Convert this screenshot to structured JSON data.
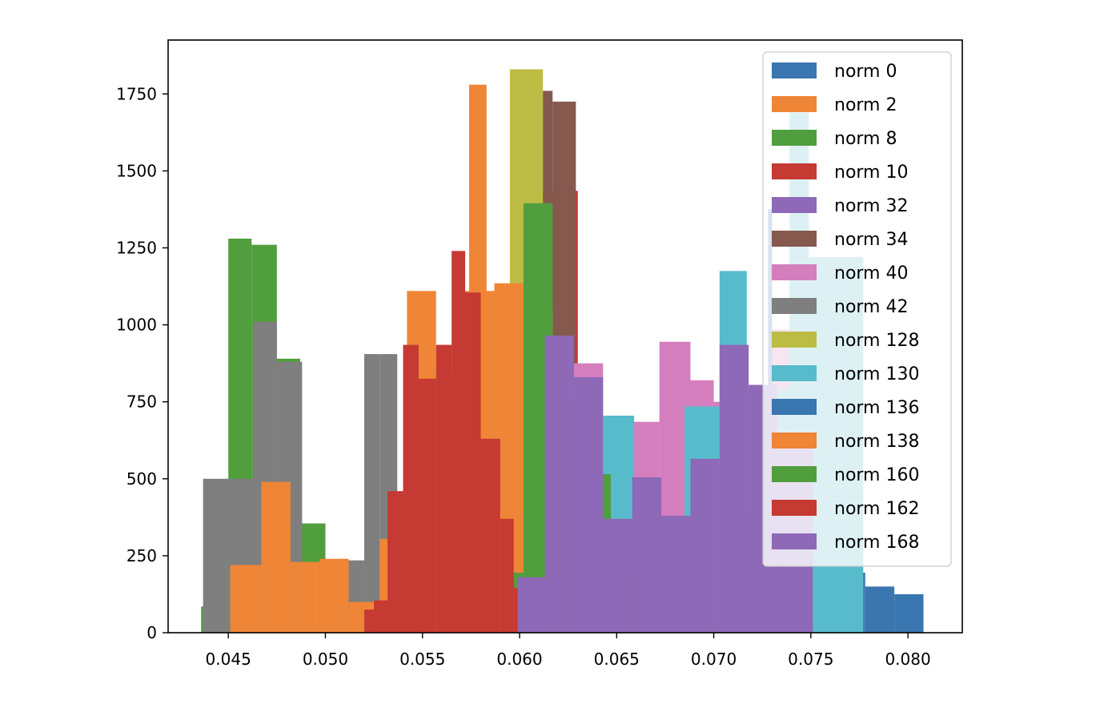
{
  "chart_data": {
    "type": "histogram",
    "title": "",
    "xlabel": "",
    "ylabel": "",
    "xlim": [
      0.0419,
      0.0828
    ],
    "ylim": [
      0,
      1925
    ],
    "xticks": [
      "0.045",
      "0.050",
      "0.055",
      "0.060",
      "0.065",
      "0.070",
      "0.075",
      "0.080"
    ],
    "yticks": [
      "0",
      "250",
      "500",
      "750",
      "1000",
      "1250",
      "1500",
      "1750"
    ],
    "grid": false,
    "legend_position": "top-right",
    "series": [
      {
        "name": "norm 0",
        "color": "#3a76af",
        "bins": [
          [
            0.075,
            0.0766,
            420
          ],
          [
            0.0766,
            0.077,
            300
          ],
          [
            0.077,
            0.0778,
            195
          ],
          [
            0.0778,
            0.0793,
            150
          ],
          [
            0.0793,
            0.0808,
            125
          ]
        ]
      },
      {
        "name": "norm 2",
        "color": "#ef8536",
        "bins": [
          [
            0.0574,
            0.0583,
            1780
          ]
        ]
      },
      {
        "name": "norm 8",
        "color": "#519e3e",
        "bins": [
          [
            0.0436,
            0.045,
            85
          ],
          [
            0.045,
            0.0462,
            1280
          ],
          [
            0.0462,
            0.0475,
            1260
          ],
          [
            0.0475,
            0.0487,
            890
          ],
          [
            0.0487,
            0.05,
            355
          ]
        ]
      },
      {
        "name": "norm 10",
        "color": "#c53a32",
        "bins": [
          [
            0.0612,
            0.063,
            1435
          ]
        ]
      },
      {
        "name": "norm 32",
        "color": "#8d69b8",
        "bins": []
      },
      {
        "name": "norm 34",
        "color": "#85594e",
        "bins": [
          [
            0.0612,
            0.0617,
            1760
          ],
          [
            0.0617,
            0.0629,
            1725
          ]
        ]
      },
      {
        "name": "norm 40",
        "color": "#d57ebe",
        "bins": [
          [
            0.0627,
            0.0643,
            875
          ],
          [
            0.0643,
            0.0658,
            705
          ],
          [
            0.0658,
            0.0672,
            685
          ],
          [
            0.0672,
            0.0688,
            945
          ],
          [
            0.0688,
            0.07,
            820
          ],
          [
            0.07,
            0.0714,
            750
          ],
          [
            0.0714,
            0.0729,
            635
          ],
          [
            0.0729,
            0.0744,
            985
          ],
          [
            0.0772,
            0.0774,
            190
          ]
        ]
      },
      {
        "name": "norm 42",
        "color": "#7f7f7f",
        "bins": [
          [
            0.0437,
            0.0463,
            500
          ],
          [
            0.0463,
            0.0475,
            1010
          ],
          [
            0.0475,
            0.0488,
            880
          ],
          [
            0.0488,
            0.0502,
            230
          ],
          [
            0.0502,
            0.052,
            235
          ],
          [
            0.052,
            0.0528,
            905
          ],
          [
            0.0528,
            0.0537,
            905
          ]
        ]
      },
      {
        "name": "norm 128",
        "color": "#bcbc45",
        "bins": [
          [
            0.0595,
            0.0612,
            1830
          ],
          [
            0.0612,
            0.0617,
            1050
          ]
        ]
      },
      {
        "name": "norm 130",
        "color": "#58bbcc",
        "bins": [
          [
            0.0583,
            0.0595,
            1100
          ],
          [
            0.0643,
            0.0659,
            705
          ],
          [
            0.0659,
            0.0685,
            370
          ],
          [
            0.0685,
            0.0703,
            735
          ],
          [
            0.0703,
            0.0717,
            1175
          ],
          [
            0.0717,
            0.0739,
            790
          ],
          [
            0.0739,
            0.0749,
            1690
          ],
          [
            0.0749,
            0.0777,
            1220
          ]
        ]
      },
      {
        "name": "norm 136",
        "color": "#3a76af",
        "bins": [
          [
            0.0715,
            0.072,
            375
          ],
          [
            0.072,
            0.0728,
            790
          ],
          [
            0.0728,
            0.073,
            1375
          ]
        ]
      },
      {
        "name": "norm 138",
        "color": "#ef8536",
        "bins": [
          [
            0.0451,
            0.0467,
            220
          ],
          [
            0.0467,
            0.0482,
            490
          ],
          [
            0.0482,
            0.0497,
            230
          ],
          [
            0.0497,
            0.0512,
            240
          ],
          [
            0.0512,
            0.0528,
            100
          ],
          [
            0.0528,
            0.0542,
            305
          ],
          [
            0.0542,
            0.0557,
            1110
          ],
          [
            0.0557,
            0.0572,
            845
          ],
          [
            0.0572,
            0.0587,
            1110
          ],
          [
            0.0587,
            0.0602,
            1135
          ]
        ]
      },
      {
        "name": "norm 160",
        "color": "#519e3e",
        "bins": [
          [
            0.0591,
            0.0602,
            195
          ],
          [
            0.0602,
            0.0617,
            1395
          ],
          [
            0.0617,
            0.0632,
            740
          ],
          [
            0.0632,
            0.0647,
            515
          ],
          [
            0.0647,
            0.0662,
            175
          ]
        ]
      },
      {
        "name": "norm 162",
        "color": "#c53a32",
        "bins": [
          [
            0.052,
            0.0525,
            75
          ],
          [
            0.0525,
            0.0532,
            105
          ],
          [
            0.0532,
            0.054,
            460
          ],
          [
            0.054,
            0.0548,
            935
          ],
          [
            0.0548,
            0.0557,
            825
          ],
          [
            0.0557,
            0.0565,
            935
          ],
          [
            0.0565,
            0.0572,
            1240
          ],
          [
            0.0572,
            0.058,
            1105
          ],
          [
            0.058,
            0.059,
            630
          ],
          [
            0.059,
            0.0597,
            370
          ],
          [
            0.0597,
            0.0602,
            145
          ]
        ]
      },
      {
        "name": "norm 168",
        "color": "#8d69b8",
        "bins": [
          [
            0.0599,
            0.0613,
            180
          ],
          [
            0.0613,
            0.0628,
            965
          ],
          [
            0.0628,
            0.0643,
            830
          ],
          [
            0.0643,
            0.0658,
            370
          ],
          [
            0.0658,
            0.0673,
            505
          ],
          [
            0.0673,
            0.0688,
            380
          ],
          [
            0.0688,
            0.0703,
            565
          ],
          [
            0.0703,
            0.0718,
            935
          ],
          [
            0.0718,
            0.0733,
            805
          ],
          [
            0.0733,
            0.0751,
            650
          ]
        ]
      }
    ],
    "layout_note": ""
  }
}
